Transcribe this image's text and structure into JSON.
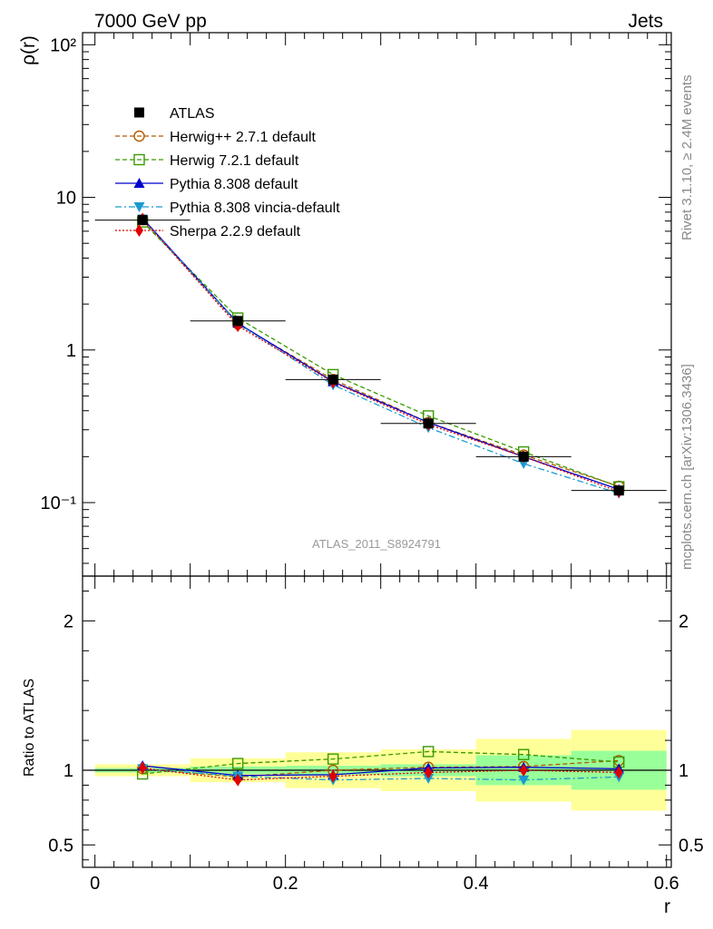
{
  "header": {
    "left": "7000 GeV pp",
    "right": "Jets"
  },
  "side_texts": {
    "rivet": "Rivet 3.1.10, ≥ 2.4M events",
    "mcplots": "mcplots.cern.ch [arXiv:1306.3436]"
  },
  "watermark": "ATLAS_2011_S8924791",
  "colors": {
    "atlas": "#000000",
    "herwigpp": "#b35900",
    "herwig7": "#3a9a00",
    "pythia": "#0000cc",
    "vincia": "#1a9ad0",
    "sherpa": "#e00000",
    "band_outer": "#ffff99",
    "band_inner": "#99ff99"
  },
  "chart_data": [
    {
      "type": "line",
      "panel": "main",
      "ylabel": "ρ(r)",
      "yscale": "log",
      "ylim": [
        0.033,
        120
      ],
      "xlim": [
        -0.013,
        0.605
      ],
      "y_tick_labels": [
        "10⁻¹",
        "1",
        "10",
        "10²"
      ],
      "legend_position": "top-left",
      "x": [
        0.05,
        0.15,
        0.25,
        0.35,
        0.45,
        0.55
      ],
      "series": [
        {
          "name": "ATLAS",
          "values": [
            7.1,
            1.55,
            0.64,
            0.33,
            0.2,
            0.12
          ]
        },
        {
          "name": "Herwig++ 2.7.1 default",
          "values": [
            7.15,
            1.48,
            0.64,
            0.335,
            0.205,
            0.128
          ]
        },
        {
          "name": "Herwig 7.2.1 default",
          "values": [
            6.9,
            1.62,
            0.69,
            0.37,
            0.215,
            0.127
          ]
        },
        {
          "name": "Pythia 8.308 default",
          "values": [
            7.3,
            1.5,
            0.62,
            0.335,
            0.2,
            0.122
          ]
        },
        {
          "name": "Pythia 8.308 vincia-default",
          "values": [
            7.2,
            1.49,
            0.59,
            0.31,
            0.18,
            0.115
          ]
        },
        {
          "name": "Sherpa 2.2.9 default",
          "values": [
            7.2,
            1.44,
            0.615,
            0.325,
            0.2,
            0.118
          ]
        }
      ]
    },
    {
      "type": "line",
      "panel": "ratio",
      "ylabel": "Ratio to ATLAS",
      "xlabel": "r",
      "ylim": [
        0.35,
        2.3
      ],
      "xlim": [
        -0.013,
        0.605
      ],
      "x_tick_labels": [
        "0",
        "0.2",
        "0.4",
        "0.6"
      ],
      "y_tick_labels": [
        "0.5",
        "1",
        "2"
      ],
      "x": [
        0.05,
        0.15,
        0.25,
        0.35,
        0.45,
        0.55
      ],
      "bins": [
        [
          0,
          0.1
        ],
        [
          0.1,
          0.2
        ],
        [
          0.2,
          0.3
        ],
        [
          0.3,
          0.4
        ],
        [
          0.4,
          0.5
        ],
        [
          0.5,
          0.6
        ]
      ],
      "band_outer": [
        [
          0.96,
          1.04
        ],
        [
          0.92,
          1.08
        ],
        [
          0.88,
          1.12
        ],
        [
          0.86,
          1.14
        ],
        [
          0.79,
          1.21
        ],
        [
          0.73,
          1.27
        ]
      ],
      "band_inner": [
        [
          0.985,
          1.015
        ],
        [
          0.975,
          1.025
        ],
        [
          0.97,
          1.03
        ],
        [
          0.96,
          1.04
        ],
        [
          0.9,
          1.1
        ],
        [
          0.87,
          1.13
        ]
      ],
      "series": [
        {
          "name": "Herwig++ 2.7.1 default",
          "values": [
            1.01,
            0.955,
            1.0,
            1.02,
            1.025,
            1.065
          ]
        },
        {
          "name": "Herwig 7.2.1 default",
          "values": [
            0.975,
            1.045,
            1.075,
            1.125,
            1.105,
            1.055
          ]
        },
        {
          "name": "Pythia 8.308 default",
          "values": [
            1.03,
            0.965,
            0.97,
            1.015,
            1.02,
            1.01
          ]
        },
        {
          "name": "Pythia 8.308 vincia-default",
          "values": [
            1.01,
            0.96,
            0.935,
            0.945,
            0.935,
            0.955
          ]
        },
        {
          "name": "Sherpa 2.2.9 default",
          "values": [
            1.015,
            0.935,
            0.96,
            0.985,
            1.0,
            0.985
          ]
        }
      ]
    }
  ]
}
